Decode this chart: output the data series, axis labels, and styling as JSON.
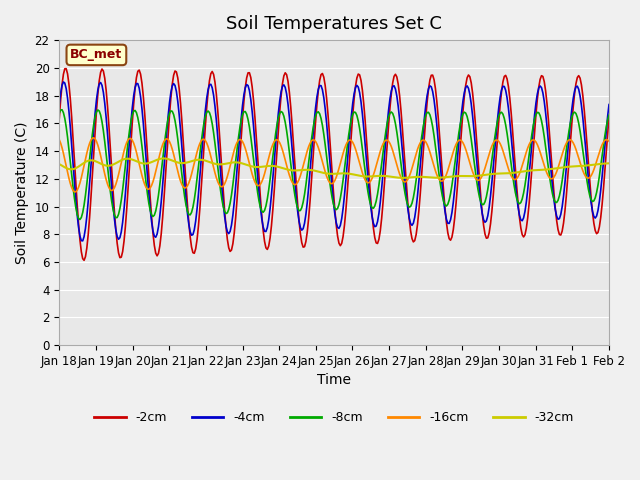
{
  "title": "Soil Temperatures Set C",
  "xlabel": "Time",
  "ylabel": "Soil Temperature (C)",
  "ylim": [
    0,
    22
  ],
  "yticks": [
    0,
    2,
    4,
    6,
    8,
    10,
    12,
    14,
    16,
    18,
    20,
    22
  ],
  "background_color": "#e8e8e8",
  "plot_bg_color": "#e8e8e8",
  "line_colors": {
    "-2cm": "#cc0000",
    "-4cm": "#0000cc",
    "-8cm": "#00aa00",
    "-16cm": "#ff8800",
    "-32cm": "#cccc00"
  },
  "legend_label": "BC_met",
  "x_tick_labels": [
    "Jan 18",
    "Jan 19",
    "Jan 20",
    "Jan 21",
    "Jan 22",
    "Jan 23",
    "Jan 24",
    "Jan 25",
    "Jan 26",
    "Jan 27",
    "Jan 28",
    "Jan 29",
    "Jan 30",
    "Jan 31",
    "Feb 1",
    "Feb 2"
  ],
  "num_points": 400,
  "title_fontsize": 13,
  "axis_fontsize": 10,
  "tick_fontsize": 8.5
}
